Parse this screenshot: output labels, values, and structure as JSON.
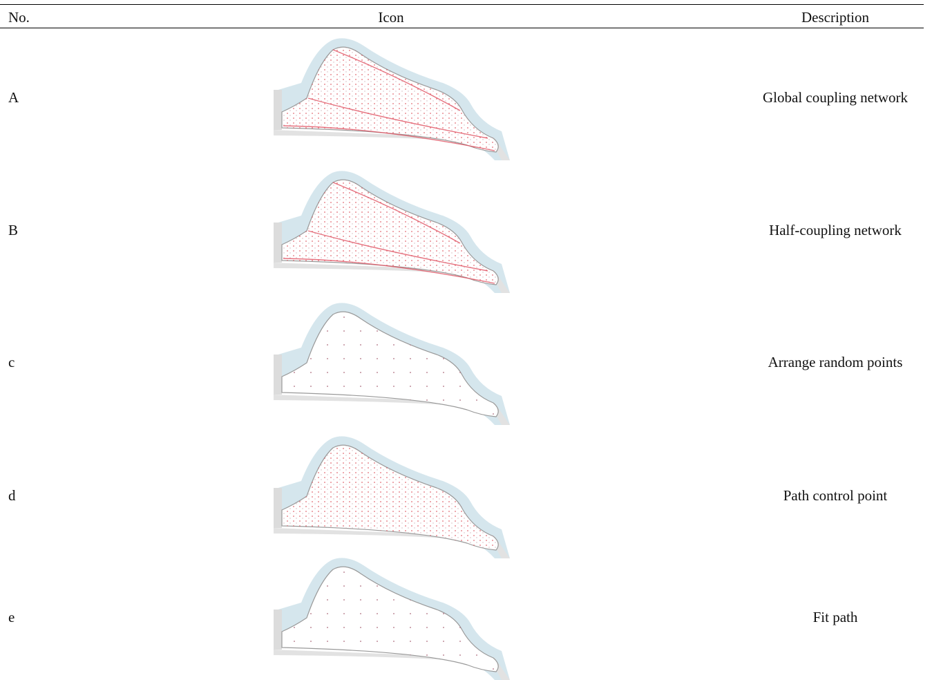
{
  "table": {
    "header": [
      "No.",
      "Icon",
      "Description"
    ],
    "rows": [
      [
        "A",
        "Global coupling network"
      ],
      [
        "B",
        "Half-coupling network"
      ],
      [
        "c",
        "Arrange random points"
      ],
      [
        "d",
        "Path control point"
      ],
      [
        "e",
        "Fit path"
      ]
    ]
  }
}
